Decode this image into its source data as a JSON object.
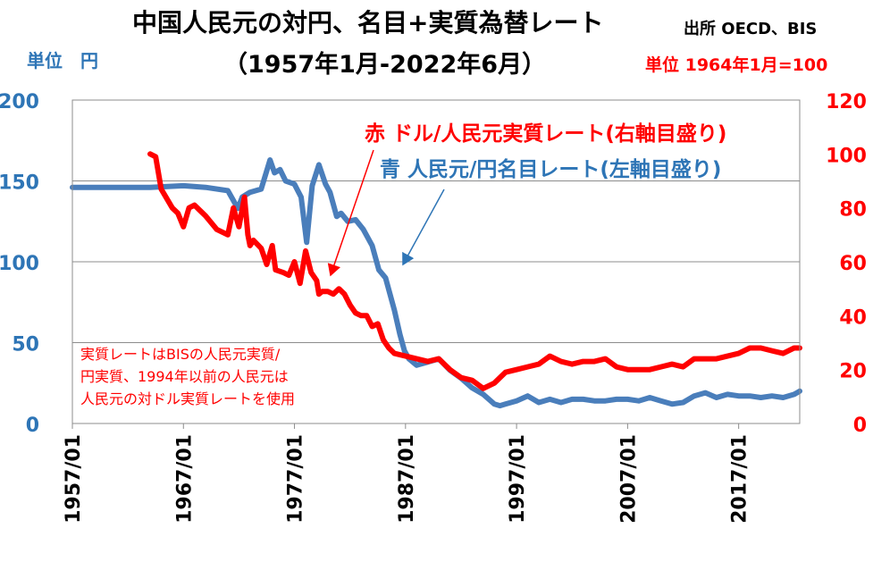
{
  "title": {
    "line1": "中国人民元の対円、名目+実質為替レート",
    "line2": "（1957年1月-2022年6月）",
    "source": "出所 OECD、BIS"
  },
  "unit_left": "単位　円",
  "unit_right": "単位 1964年1月=100",
  "legend": {
    "red": "赤 ドル/人民元実質レート(右軸目盛り)",
    "blue": "青 人民元/円名目レート(左軸目盛り)"
  },
  "note": "実質レートはBISの人民元実質/\n円実質、1994年以前の人民元は\n人民元の対ドル実質レートを使用",
  "colors": {
    "blue": "#4a7ebb",
    "red": "#ff0000",
    "left_axis": "#2e75b6",
    "right_axis": "#ff0000"
  },
  "chart_data": {
    "type": "line",
    "x_ticks": [
      "1957/01",
      "1967/01",
      "1977/01",
      "1987/01",
      "1997/01",
      "2007/01",
      "2017/01"
    ],
    "y_left_ticks": [
      "0",
      "50",
      "100",
      "150",
      "200"
    ],
    "y_right_ticks": [
      "0",
      "20",
      "40",
      "60",
      "80",
      "100",
      "120"
    ],
    "y_left_range": [
      0,
      200
    ],
    "y_right_range": [
      0,
      120
    ],
    "x_range": [
      1957.0,
      2022.5
    ],
    "grid": "horizontal",
    "series": [
      {
        "name": "人民元/円名目レート",
        "axis": "left",
        "color": "blue",
        "x": [
          1957.0,
          1960.0,
          1964.0,
          1967.0,
          1969.0,
          1971.0,
          1971.9,
          1972.3,
          1973.0,
          1974.0,
          1974.8,
          1975.2,
          1975.7,
          1976.2,
          1977.0,
          1977.6,
          1978.1,
          1978.6,
          1979.2,
          1979.8,
          1980.2,
          1980.8,
          1981.2,
          1981.8,
          1982.5,
          1983.2,
          1984.0,
          1984.6,
          1985.2,
          1986.0,
          1986.5,
          1986.9,
          1987.3,
          1988.0,
          1989.0,
          1990.0,
          1991.0,
          1992.0,
          1993.0,
          1994.0,
          1995.0,
          1995.5,
          1996.0,
          1997.0,
          1998.0,
          1999.0,
          2000.0,
          2001.0,
          2002.0,
          2003.0,
          2004.0,
          2005.0,
          2006.0,
          2007.0,
          2008.0,
          2009.0,
          2010.0,
          2011.0,
          2012.0,
          2013.0,
          2014.0,
          2015.0,
          2016.0,
          2017.0,
          2018.0,
          2019.0,
          2020.0,
          2021.0,
          2022.0,
          2022.5
        ],
        "values": [
          146,
          146,
          146,
          147,
          146,
          144,
          133,
          140,
          143,
          145,
          163,
          155,
          157,
          150,
          148,
          140,
          112,
          147,
          160,
          148,
          143,
          128,
          130,
          125,
          126,
          120,
          110,
          95,
          90,
          70,
          55,
          45,
          40,
          36,
          38,
          40,
          33,
          28,
          22,
          18,
          12,
          11,
          12,
          14,
          17,
          13,
          15,
          13,
          15,
          15,
          14,
          14,
          15,
          15,
          14,
          16,
          14,
          12,
          13,
          17,
          19,
          16,
          18,
          17,
          17,
          16,
          17,
          16,
          18,
          20
        ]
      },
      {
        "name": "ドル/人民元実質レート",
        "axis": "right",
        "color": "red",
        "x": [
          1964.0,
          1964.5,
          1965.0,
          1966.0,
          1966.5,
          1967.0,
          1967.5,
          1968.0,
          1968.5,
          1969.0,
          1970.0,
          1970.5,
          1971.0,
          1971.5,
          1972.0,
          1972.5,
          1972.8,
          1973.0,
          1973.3,
          1974.0,
          1974.5,
          1975.0,
          1975.3,
          1976.0,
          1976.5,
          1977.0,
          1977.5,
          1978.0,
          1978.5,
          1979.0,
          1979.2,
          1979.5,
          1980.0,
          1980.5,
          1981.0,
          1981.5,
          1982.0,
          1982.5,
          1983.0,
          1983.5,
          1984.0,
          1984.5,
          1985.0,
          1985.5,
          1986.0,
          1987.0,
          1988.0,
          1989.0,
          1990.0,
          1991.0,
          1992.0,
          1993.0,
          1994.0,
          1995.0,
          1996.0,
          1997.0,
          1998.0,
          1999.0,
          2000.0,
          2001.0,
          2002.0,
          2003.0,
          2004.0,
          2005.0,
          2006.0,
          2007.0,
          2008.0,
          2009.0,
          2010.0,
          2011.0,
          2012.0,
          2013.0,
          2014.0,
          2015.0,
          2016.0,
          2017.0,
          2018.0,
          2019.0,
          2020.0,
          2021.0,
          2022.0,
          2022.5
        ],
        "values": [
          100,
          99,
          87,
          80,
          78,
          73,
          80,
          81,
          79,
          77,
          72,
          71,
          70,
          80,
          73,
          84,
          70,
          66,
          68,
          65,
          59,
          66,
          57,
          56,
          55,
          60,
          52,
          64,
          56,
          53,
          48,
          49,
          49,
          48,
          50,
          48,
          44,
          41,
          40,
          40,
          36,
          37,
          31,
          28,
          26,
          25,
          24,
          23,
          24,
          20,
          17,
          16,
          13,
          15,
          19,
          20,
          21,
          22,
          25,
          23,
          22,
          23,
          23,
          24,
          21,
          20,
          20,
          20,
          21,
          22,
          21,
          24,
          24,
          24,
          25,
          26,
          28,
          28,
          27,
          26,
          28,
          28
        ]
      }
    ]
  }
}
